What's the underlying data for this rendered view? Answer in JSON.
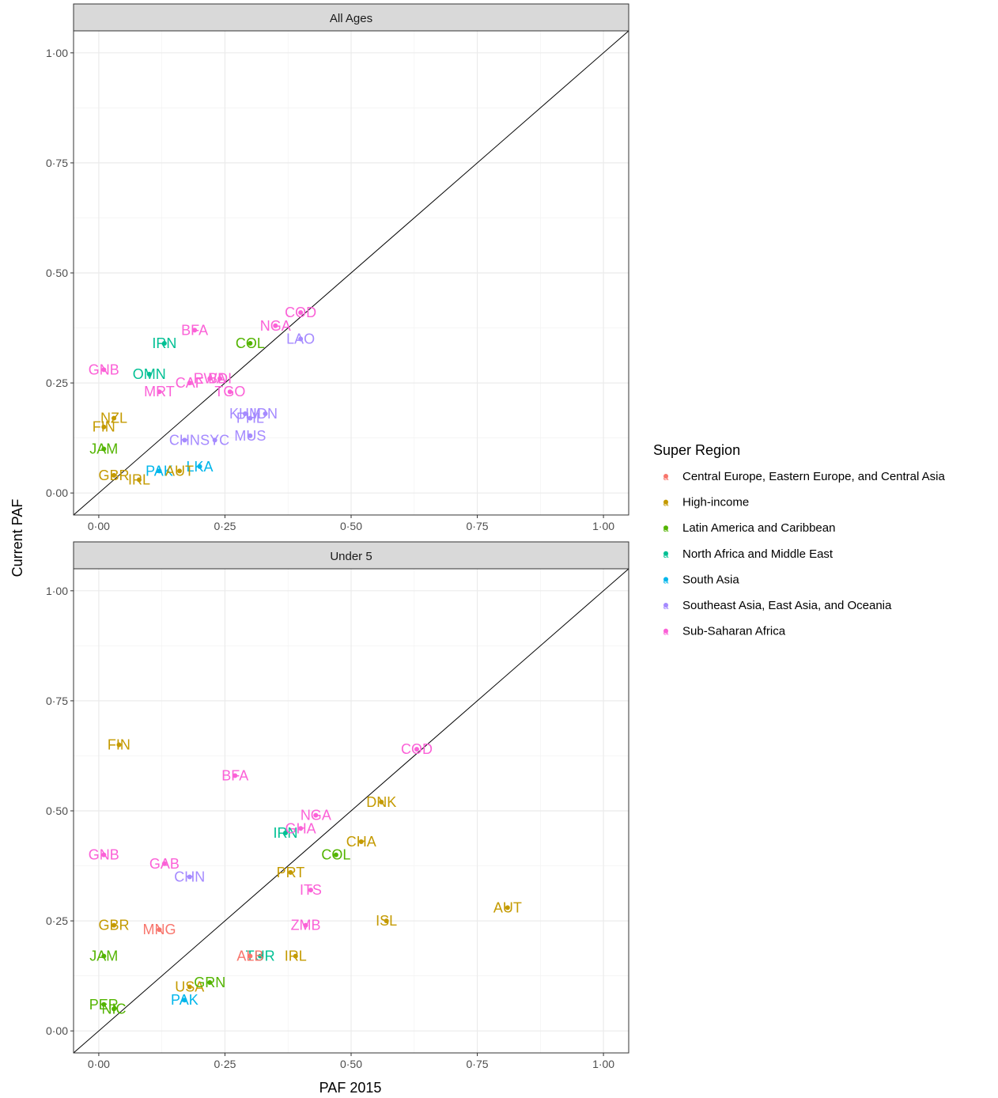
{
  "chart_data": {
    "type": "scatter",
    "xlabel": "PAF 2015",
    "ylabel": "Current PAF",
    "xlim": [
      -0.05,
      1.05
    ],
    "ylim": [
      -0.05,
      1.05
    ],
    "x_ticks": [
      "0·00",
      "0·25",
      "0·50",
      "0·75",
      "1·00"
    ],
    "y_ticks": [
      "0·00",
      "0·25",
      "0·50",
      "0·75",
      "1·00"
    ],
    "reference_line": "y = x",
    "grid": true,
    "legend": {
      "title": "Super Region",
      "position": "right",
      "entries": [
        {
          "name": "Central Europe, Eastern Europe, and Central Asia",
          "color": "#F8766D"
        },
        {
          "name": "High-income",
          "color": "#C49A00"
        },
        {
          "name": "Latin America and Caribbean",
          "color": "#53B400"
        },
        {
          "name": "North Africa and Middle East",
          "color": "#00C094"
        },
        {
          "name": "South Asia",
          "color": "#00B6EB"
        },
        {
          "name": "Southeast Asia, East Asia, and Oceania",
          "color": "#A58AFF"
        },
        {
          "name": "Sub-Saharan Africa",
          "color": "#FB61D7"
        }
      ]
    },
    "panels": [
      {
        "title": "All Ages",
        "points": [
          {
            "label": "COD",
            "region": 6,
            "x": 0.4,
            "y": 0.41
          },
          {
            "label": "NGA",
            "region": 6,
            "x": 0.35,
            "y": 0.38
          },
          {
            "label": "BFA",
            "region": 6,
            "x": 0.19,
            "y": 0.37
          },
          {
            "label": "COL",
            "region": 2,
            "x": 0.3,
            "y": 0.34
          },
          {
            "label": "LAO",
            "region": 5,
            "x": 0.4,
            "y": 0.35
          },
          {
            "label": "IRN",
            "region": 3,
            "x": 0.13,
            "y": 0.34
          },
          {
            "label": "GNB",
            "region": 6,
            "x": 0.01,
            "y": 0.28
          },
          {
            "label": "OMN",
            "region": 3,
            "x": 0.1,
            "y": 0.27
          },
          {
            "label": "CAF",
            "region": 6,
            "x": 0.18,
            "y": 0.25
          },
          {
            "label": "RWA",
            "region": 6,
            "x": 0.22,
            "y": 0.26
          },
          {
            "label": "BDI",
            "region": 6,
            "x": 0.24,
            "y": 0.26
          },
          {
            "label": "MRT",
            "region": 6,
            "x": 0.12,
            "y": 0.23
          },
          {
            "label": "TGO",
            "region": 6,
            "x": 0.26,
            "y": 0.23
          },
          {
            "label": "KHM",
            "region": 5,
            "x": 0.29,
            "y": 0.18
          },
          {
            "label": "PHL",
            "region": 5,
            "x": 0.3,
            "y": 0.17
          },
          {
            "label": "IDN",
            "region": 5,
            "x": 0.33,
            "y": 0.18
          },
          {
            "label": "MUS",
            "region": 5,
            "x": 0.3,
            "y": 0.13
          },
          {
            "label": "SYC",
            "region": 5,
            "x": 0.23,
            "y": 0.12
          },
          {
            "label": "LKA",
            "region": 4,
            "x": 0.2,
            "y": 0.06
          },
          {
            "label": "PAK",
            "region": 4,
            "x": 0.12,
            "y": 0.05
          },
          {
            "label": "AUT",
            "region": 1,
            "x": 0.16,
            "y": 0.05
          },
          {
            "label": "NZL",
            "region": 1,
            "x": 0.03,
            "y": 0.17
          },
          {
            "label": "FIN",
            "region": 1,
            "x": 0.01,
            "y": 0.15
          },
          {
            "label": "JAM",
            "region": 2,
            "x": 0.01,
            "y": 0.1
          },
          {
            "label": "CHN",
            "region": 5,
            "x": 0.17,
            "y": 0.12
          },
          {
            "label": "GBR",
            "region": 1,
            "x": 0.03,
            "y": 0.04
          },
          {
            "label": "IRL",
            "region": 1,
            "x": 0.08,
            "y": 0.03
          }
        ]
      },
      {
        "title": "Under 5",
        "points": [
          {
            "label": "COD",
            "region": 6,
            "x": 0.63,
            "y": 0.64
          },
          {
            "label": "FIN",
            "region": 1,
            "x": 0.04,
            "y": 0.65
          },
          {
            "label": "BFA",
            "region": 6,
            "x": 0.27,
            "y": 0.58
          },
          {
            "label": "DNK",
            "region": 1,
            "x": 0.56,
            "y": 0.52
          },
          {
            "label": "NGA",
            "region": 6,
            "x": 0.43,
            "y": 0.49
          },
          {
            "label": "IRN",
            "region": 3,
            "x": 0.37,
            "y": 0.45
          },
          {
            "label": "GHA",
            "region": 6,
            "x": 0.4,
            "y": 0.46
          },
          {
            "label": "CHA",
            "region": 1,
            "x": 0.52,
            "y": 0.43
          },
          {
            "label": "COL",
            "region": 2,
            "x": 0.47,
            "y": 0.4
          },
          {
            "label": "GNB",
            "region": 6,
            "x": 0.01,
            "y": 0.4
          },
          {
            "label": "GAB",
            "region": 6,
            "x": 0.13,
            "y": 0.38
          },
          {
            "label": "CHN",
            "region": 5,
            "x": 0.18,
            "y": 0.35
          },
          {
            "label": "PRT",
            "region": 1,
            "x": 0.38,
            "y": 0.36
          },
          {
            "label": "ITS",
            "region": 6,
            "x": 0.42,
            "y": 0.32
          },
          {
            "label": "AUT",
            "region": 1,
            "x": 0.81,
            "y": 0.28
          },
          {
            "label": "ISL",
            "region": 1,
            "x": 0.57,
            "y": 0.25
          },
          {
            "label": "ZMB",
            "region": 6,
            "x": 0.41,
            "y": 0.24
          },
          {
            "label": "GBR",
            "region": 1,
            "x": 0.03,
            "y": 0.24
          },
          {
            "label": "MNG",
            "region": 0,
            "x": 0.12,
            "y": 0.23
          },
          {
            "label": "TUR",
            "region": 3,
            "x": 0.32,
            "y": 0.17
          },
          {
            "label": "IRL",
            "region": 1,
            "x": 0.39,
            "y": 0.17
          },
          {
            "label": "JAM",
            "region": 2,
            "x": 0.01,
            "y": 0.17
          },
          {
            "label": "PAK",
            "region": 4,
            "x": 0.17,
            "y": 0.07
          },
          {
            "label": "PER",
            "region": 2,
            "x": 0.01,
            "y": 0.06
          },
          {
            "label": "NIC",
            "region": 2,
            "x": 0.03,
            "y": 0.05
          },
          {
            "label": "USA",
            "region": 1,
            "x": 0.18,
            "y": 0.1
          },
          {
            "label": "GRN",
            "region": 2,
            "x": 0.22,
            "y": 0.11
          },
          {
            "label": "ALB",
            "region": 0,
            "x": 0.3,
            "y": 0.17
          }
        ]
      }
    ]
  }
}
